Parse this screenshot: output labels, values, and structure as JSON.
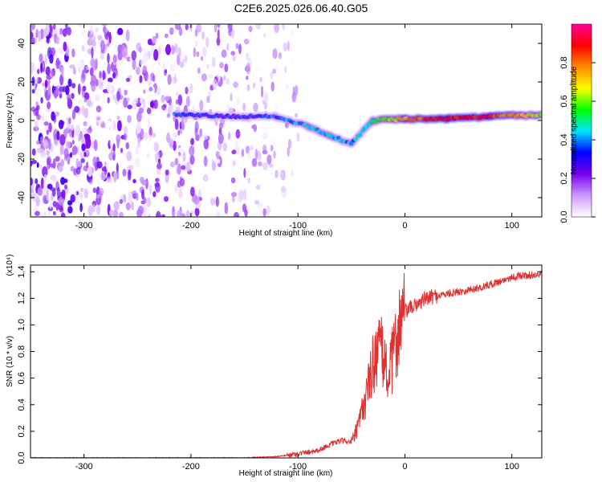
{
  "title": "C2E6.2025.026.06.40.G05",
  "colors": {
    "plot_bg": "#ffffff",
    "snr_line": "#e03030",
    "axis": "#000000"
  },
  "chart_data": [
    {
      "type": "heatmap",
      "xlabel": "Height of straight line (km)",
      "ylabel": "Frequency (Hz)",
      "xlim": [
        -350,
        128
      ],
      "ylim": [
        -50,
        50
      ],
      "x_ticks": [
        -300,
        -200,
        -100,
        0,
        100
      ],
      "y_ticks": [
        -40,
        -20,
        0,
        20,
        40
      ],
      "colorbar": {
        "label": "Normalized spectral amplitude",
        "range": [
          0.0,
          1.0
        ],
        "ticks": [
          "0.0",
          "0.2",
          "0.4",
          "0.6",
          "0.8"
        ],
        "colormap": [
          "#ffffff",
          "#cc99ff",
          "#7700ee",
          "#0000ff",
          "#00e5ff",
          "#00ff00",
          "#ffff00",
          "#ff8800",
          "#ff0000",
          "#ff0099"
        ]
      },
      "features": {
        "noise_region_x": [
          -350,
          -110
        ],
        "main_trace": [
          {
            "x": -215,
            "y": 3,
            "amp": 0.35
          },
          {
            "x": -150,
            "y": 2,
            "amp": 0.3
          },
          {
            "x": -120,
            "y": 2,
            "amp": 0.35
          },
          {
            "x": -90,
            "y": -3,
            "amp": 0.45
          },
          {
            "x": -70,
            "y": -8,
            "amp": 0.45
          },
          {
            "x": -50,
            "y": -12,
            "amp": 0.4
          },
          {
            "x": -30,
            "y": 0,
            "amp": 0.5
          },
          {
            "x": 0,
            "y": 1,
            "amp": 0.75
          },
          {
            "x": 40,
            "y": 1,
            "amp": 0.9
          },
          {
            "x": 80,
            "y": 2,
            "amp": 0.85
          },
          {
            "x": 128,
            "y": 3,
            "amp": 0.6
          }
        ]
      }
    },
    {
      "type": "line",
      "xlabel": "Height of straight line (km)",
      "ylabel": "SNR (10 * v/v)",
      "y_multiplier": "(x10⁴)",
      "xlim": [
        -350,
        128
      ],
      "ylim": [
        0.0,
        1.45
      ],
      "x_ticks": [
        -300,
        -200,
        -100,
        0,
        100
      ],
      "y_ticks": [
        "0.0",
        "0.2",
        "0.4",
        "0.6",
        "0.8",
        "1.0",
        "1.2",
        "1.4"
      ],
      "series": [
        {
          "x": [
            -350,
            -300,
            -250,
            -200,
            -150,
            -120,
            -100,
            -80,
            -70,
            -60,
            -50,
            -45,
            -40,
            -35,
            -30,
            -25,
            -20,
            -15,
            -10,
            -5,
            0,
            10,
            20,
            30,
            50,
            70,
            90,
            100,
            110,
            128
          ],
          "y": [
            0.0,
            0.0,
            0.0,
            0.0,
            0.0,
            0.01,
            0.03,
            0.06,
            0.1,
            0.13,
            0.12,
            0.2,
            0.35,
            0.5,
            0.7,
            0.85,
            0.75,
            0.6,
            0.8,
            1.0,
            1.1,
            1.15,
            1.2,
            1.22,
            1.25,
            1.28,
            1.33,
            1.36,
            1.37,
            1.38
          ]
        }
      ]
    }
  ]
}
